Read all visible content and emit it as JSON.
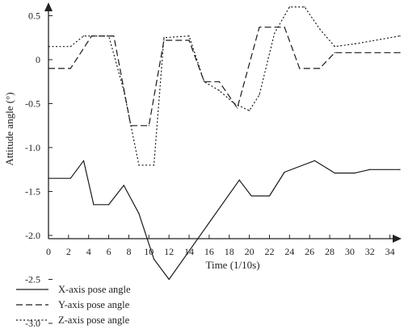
{
  "chart_data": {
    "type": "line",
    "xlabel": "Time (1/10s)",
    "ylabel": "Attitude angle (°)",
    "xlim": [
      0,
      35.5
    ],
    "ylim": [
      -3.0,
      0.7
    ],
    "xticks": [
      0,
      2,
      4,
      6,
      8,
      10,
      12,
      14,
      16,
      18,
      20,
      22,
      24,
      26,
      28,
      30,
      32,
      34
    ],
    "yticks": [
      {
        "v": 0.5,
        "label": "0.5"
      },
      {
        "v": 0,
        "label": "0"
      },
      {
        "v": -0.5,
        "label": "-0.5"
      },
      {
        "v": -1.0,
        "label": "-1.0"
      },
      {
        "v": -1.5,
        "label": "-1.5"
      },
      {
        "v": -2.0,
        "label": "-2.0"
      },
      {
        "v": -2.5,
        "label": "-2.5"
      },
      {
        "v": -3.0,
        "label": "-3.0"
      }
    ],
    "grid": false,
    "legend_position": "bottom-left",
    "series": [
      {
        "name": "X-axis pose angle",
        "color": "#1a1a1a",
        "dash": "solid",
        "x": [
          0,
          2.2,
          3.5,
          4.5,
          6,
          7.5,
          9,
          10.5,
          12,
          19,
          20.2,
          22,
          23.5,
          26.5,
          28.5,
          30.5,
          32,
          35
        ],
        "y": [
          -1.35,
          -1.35,
          -1.15,
          -1.65,
          -1.65,
          -1.43,
          -1.75,
          -2.27,
          -2.5,
          -1.37,
          -1.55,
          -1.55,
          -1.28,
          -1.15,
          -1.29,
          -1.29,
          -1.25,
          -1.25
        ]
      },
      {
        "name": "Y-axis pose angle",
        "color": "#1a1a1a",
        "dash": "dashed",
        "x": [
          0,
          2.2,
          4.3,
          6.5,
          8.2,
          10,
          11.5,
          14,
          15.5,
          17,
          18.8,
          21,
          23.5,
          25,
          27,
          28.5,
          30.5,
          35
        ],
        "y": [
          -0.1,
          -0.1,
          0.27,
          0.27,
          -0.75,
          -0.75,
          0.22,
          0.22,
          -0.25,
          -0.25,
          -0.55,
          0.37,
          0.37,
          -0.1,
          -0.1,
          0.08,
          0.08,
          0.08
        ]
      },
      {
        "name": "Z-axis pose angle",
        "color": "#1a1a1a",
        "dash": "dotted",
        "x": [
          0,
          2.2,
          3.5,
          6,
          7.5,
          9,
          10.5,
          11.5,
          14,
          15.5,
          17,
          18.5,
          20,
          21,
          22.5,
          24,
          25.5,
          27,
          28.5,
          30.5,
          35
        ],
        "y": [
          0.15,
          0.15,
          0.27,
          0.27,
          -0.35,
          -1.2,
          -1.2,
          0.25,
          0.27,
          -0.25,
          -0.35,
          -0.5,
          -0.58,
          -0.4,
          0.3,
          0.6,
          0.6,
          0.35,
          0.15,
          0.18,
          0.27
        ]
      }
    ]
  }
}
